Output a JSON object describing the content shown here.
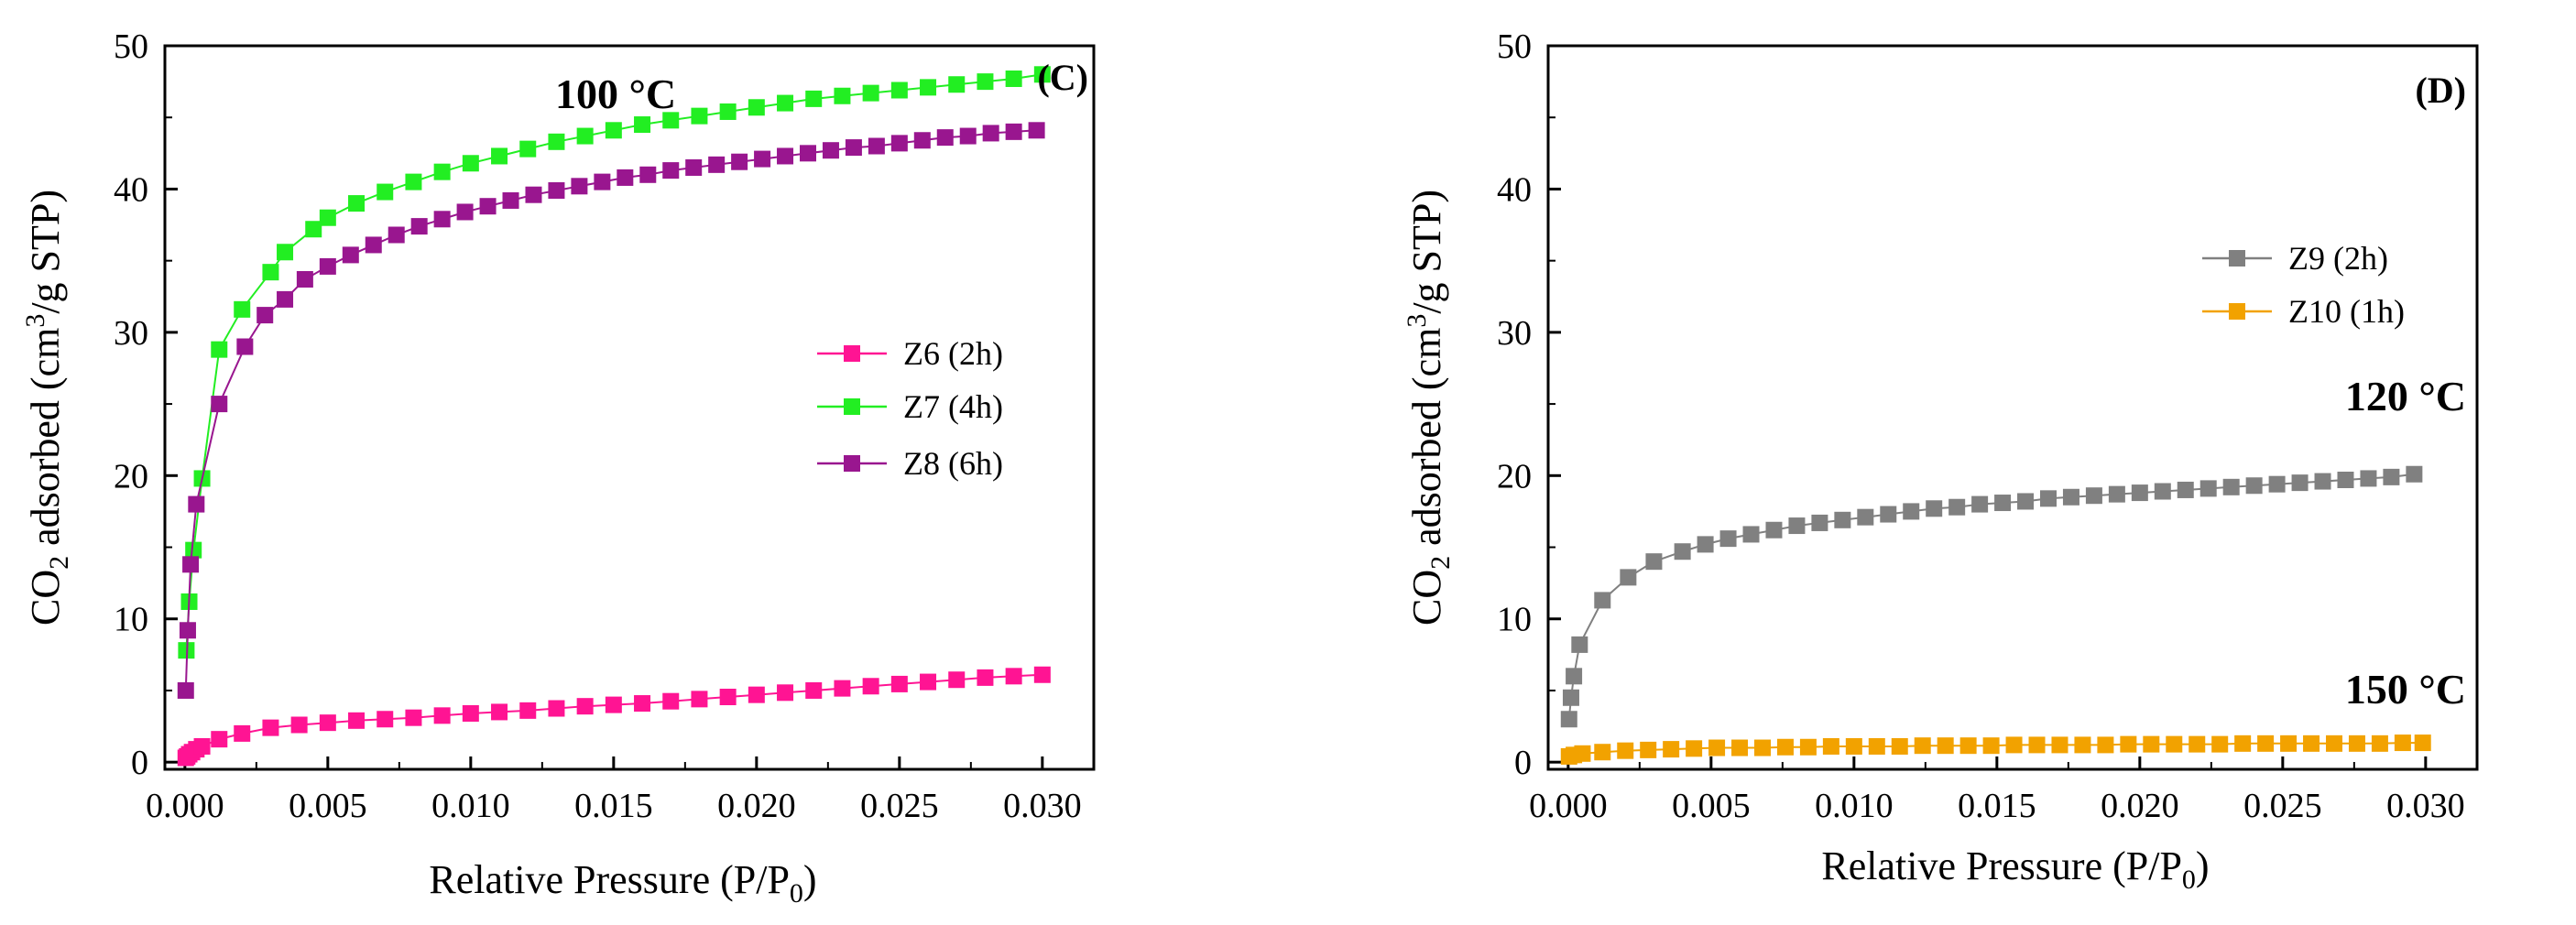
{
  "chart_data": [
    {
      "type": "scatter",
      "panel_label": "(C)",
      "annotations": [
        {
          "text": "100 °C"
        }
      ],
      "xlabel_main": "Relative Pressure (P/P",
      "xlabel_sub": "0",
      "xlabel_end": ")",
      "ylabel_main": "CO",
      "ylabel_sub": "2",
      "ylabel_mid": " adsorbed (cm",
      "ylabel_sup": "3",
      "ylabel_end": "/g STP)",
      "xlim": [
        -0.0007,
        0.0318
      ],
      "ylim": [
        -0.5,
        50
      ],
      "xticks": [
        0.0,
        0.005,
        0.01,
        0.015,
        0.02,
        0.025,
        0.03
      ],
      "xtick_labels": [
        "0.000",
        "0.005",
        "0.010",
        "0.015",
        "0.020",
        "0.025",
        "0.030"
      ],
      "yticks": [
        0,
        10,
        20,
        30,
        40,
        50
      ],
      "ytick_labels": [
        "0",
        "10",
        "20",
        "30",
        "40",
        "50"
      ],
      "legend_position": "center-right",
      "grid": false,
      "series": [
        {
          "name": "Z6 (2h)",
          "color": "#ff1493",
          "x": [
            3e-05,
            8e-05,
            0.00015,
            0.00025,
            0.0004,
            0.0006,
            0.0012,
            0.002,
            0.003,
            0.004,
            0.005,
            0.006,
            0.007,
            0.008,
            0.009,
            0.01,
            0.011,
            0.012,
            0.013,
            0.014,
            0.015,
            0.016,
            0.017,
            0.018,
            0.019,
            0.02,
            0.021,
            0.022,
            0.023,
            0.024,
            0.025,
            0.026,
            0.027,
            0.028,
            0.029,
            0.03
          ],
          "y": [
            0.3,
            0.4,
            0.55,
            0.7,
            0.9,
            1.1,
            1.6,
            2.0,
            2.4,
            2.6,
            2.75,
            2.9,
            3.0,
            3.1,
            3.25,
            3.4,
            3.5,
            3.6,
            3.75,
            3.9,
            4.0,
            4.1,
            4.25,
            4.4,
            4.55,
            4.7,
            4.85,
            5.0,
            5.15,
            5.3,
            5.45,
            5.6,
            5.75,
            5.9,
            6.0,
            6.1
          ]
        },
        {
          "name": "Z7 (4h)",
          "color": "#22ee22",
          "x": [
            5e-05,
            0.00015,
            0.0003,
            0.0006,
            0.0012,
            0.002,
            0.003,
            0.0035,
            0.0045,
            0.005,
            0.006,
            0.007,
            0.008,
            0.009,
            0.01,
            0.011,
            0.012,
            0.013,
            0.014,
            0.015,
            0.016,
            0.017,
            0.018,
            0.019,
            0.02,
            0.021,
            0.022,
            0.023,
            0.024,
            0.025,
            0.026,
            0.027,
            0.028,
            0.029,
            0.03
          ],
          "y": [
            7.8,
            11.2,
            14.8,
            19.8,
            28.8,
            31.6,
            34.2,
            35.6,
            37.2,
            38.0,
            39.0,
            39.8,
            40.5,
            41.2,
            41.8,
            42.3,
            42.8,
            43.3,
            43.7,
            44.1,
            44.5,
            44.8,
            45.1,
            45.4,
            45.7,
            46.0,
            46.3,
            46.5,
            46.7,
            46.9,
            47.1,
            47.3,
            47.5,
            47.7,
            48.0
          ]
        },
        {
          "name": "Z8 (6h)",
          "color": "#99168f",
          "x": [
            3e-05,
            0.0001,
            0.0002,
            0.0004,
            0.0012,
            0.0021,
            0.0028,
            0.0035,
            0.0042,
            0.005,
            0.0058,
            0.0066,
            0.0074,
            0.0082,
            0.009,
            0.0098,
            0.0106,
            0.0114,
            0.0122,
            0.013,
            0.0138,
            0.0146,
            0.0154,
            0.0162,
            0.017,
            0.0178,
            0.0186,
            0.0194,
            0.0202,
            0.021,
            0.0218,
            0.0226,
            0.0234,
            0.0242,
            0.025,
            0.0258,
            0.0266,
            0.0274,
            0.0282,
            0.029,
            0.0298
          ],
          "y": [
            5.0,
            9.2,
            13.8,
            18.0,
            25.0,
            29.0,
            31.2,
            32.3,
            33.7,
            34.6,
            35.4,
            36.1,
            36.8,
            37.4,
            37.9,
            38.4,
            38.8,
            39.2,
            39.6,
            39.9,
            40.2,
            40.5,
            40.8,
            41.0,
            41.3,
            41.5,
            41.7,
            41.9,
            42.1,
            42.3,
            42.5,
            42.7,
            42.9,
            43.0,
            43.2,
            43.4,
            43.6,
            43.7,
            43.9,
            44.0,
            44.1
          ]
        }
      ]
    },
    {
      "type": "scatter",
      "panel_label": "(D)",
      "annotations": [
        {
          "text": "120 °C"
        },
        {
          "text": "150 °C"
        }
      ],
      "xlabel_main": "Relative Pressure (P/P",
      "xlabel_sub": "0",
      "xlabel_end": ")",
      "ylabel_main": "CO",
      "ylabel_sub": "2",
      "ylabel_mid": " adsorbed (cm",
      "ylabel_sup": "3",
      "ylabel_end": "/g STP)",
      "xlim": [
        -0.0007,
        0.0318
      ],
      "ylim": [
        -0.5,
        50
      ],
      "xticks": [
        0.0,
        0.005,
        0.01,
        0.015,
        0.02,
        0.025,
        0.03
      ],
      "xtick_labels": [
        "0.000",
        "0.005",
        "0.010",
        "0.015",
        "0.020",
        "0.025",
        "0.030"
      ],
      "yticks": [
        0,
        10,
        20,
        30,
        40,
        50
      ],
      "ytick_labels": [
        "0",
        "10",
        "20",
        "30",
        "40",
        "50"
      ],
      "legend_position": "upper-right",
      "grid": false,
      "series": [
        {
          "name": "Z9 (2h)",
          "color": "#808080",
          "x": [
            3e-05,
            0.0001,
            0.0002,
            0.0004,
            0.0012,
            0.0021,
            0.003,
            0.004,
            0.0048,
            0.0056,
            0.0064,
            0.0072,
            0.008,
            0.0088,
            0.0096,
            0.0104,
            0.0112,
            0.012,
            0.0128,
            0.0136,
            0.0144,
            0.0152,
            0.016,
            0.0168,
            0.0176,
            0.0184,
            0.0192,
            0.02,
            0.0208,
            0.0216,
            0.0224,
            0.0232,
            0.024,
            0.0248,
            0.0256,
            0.0264,
            0.0272,
            0.028,
            0.0288,
            0.0296
          ],
          "y": [
            3.0,
            4.5,
            6.0,
            8.2,
            11.3,
            12.9,
            14.0,
            14.7,
            15.2,
            15.6,
            15.9,
            16.2,
            16.5,
            16.7,
            16.9,
            17.1,
            17.3,
            17.5,
            17.7,
            17.8,
            18.0,
            18.1,
            18.2,
            18.4,
            18.5,
            18.6,
            18.7,
            18.8,
            18.9,
            19.0,
            19.1,
            19.2,
            19.3,
            19.4,
            19.5,
            19.6,
            19.7,
            19.8,
            19.9,
            20.1
          ]
        },
        {
          "name": "Z10 (1h)",
          "color": "#f2a200",
          "x": [
            3e-05,
            0.0002,
            0.0005,
            0.0012,
            0.002,
            0.0028,
            0.0036,
            0.0044,
            0.0052,
            0.006,
            0.0068,
            0.0076,
            0.0084,
            0.0092,
            0.01,
            0.0108,
            0.0116,
            0.0124,
            0.0132,
            0.014,
            0.0148,
            0.0156,
            0.0164,
            0.0172,
            0.018,
            0.0188,
            0.0196,
            0.0204,
            0.0212,
            0.022,
            0.0228,
            0.0236,
            0.0244,
            0.0252,
            0.026,
            0.0268,
            0.0276,
            0.0284,
            0.0292,
            0.0299
          ],
          "y": [
            0.4,
            0.5,
            0.6,
            0.7,
            0.8,
            0.85,
            0.9,
            0.95,
            1.0,
            1.0,
            1.0,
            1.05,
            1.05,
            1.1,
            1.1,
            1.1,
            1.1,
            1.15,
            1.15,
            1.15,
            1.15,
            1.2,
            1.2,
            1.2,
            1.2,
            1.2,
            1.25,
            1.25,
            1.25,
            1.25,
            1.25,
            1.3,
            1.3,
            1.3,
            1.3,
            1.3,
            1.3,
            1.3,
            1.35,
            1.35
          ]
        }
      ]
    }
  ]
}
